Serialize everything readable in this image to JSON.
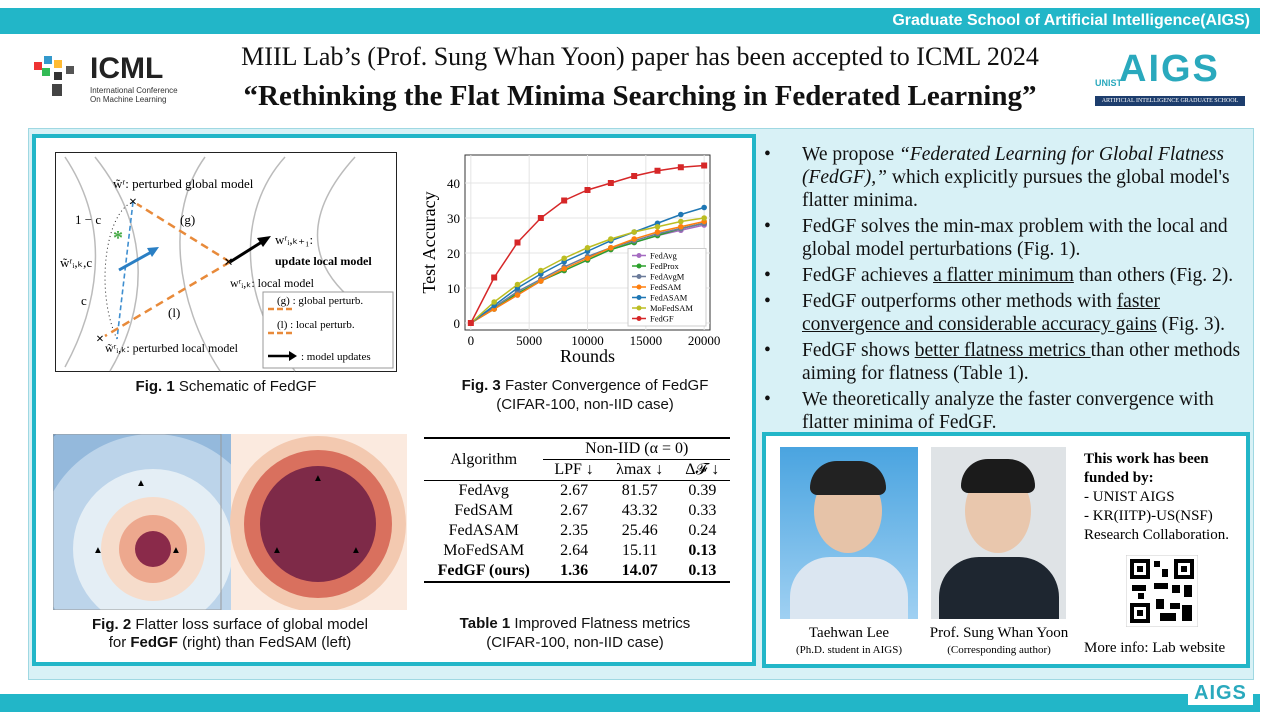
{
  "header": {
    "institution": "Graduate School of Artificial Intelligence(AIGS)",
    "icml_logo": {
      "name": "ICML",
      "sub": [
        "International Conference",
        "On Machine Learning"
      ]
    },
    "aigs_logo": {
      "name": "AIGS",
      "unist": "UNIST",
      "sub": "ARTIFICIAL INTELLIGENCE GRADUATE SCHOOL"
    },
    "title_line1": "MIIL Lab’s (Prof. Sung Whan Yoon) paper has been accepted to ICML 2024",
    "title_line2": "“Rethinking the Flat Minima Searching in Federated Learning”"
  },
  "fig1": {
    "labels": {
      "perturbed_global": "w̃ʳ: perturbed global model",
      "next": "wʳᵢ,ₖ₊₁:",
      "update": "update local model",
      "local": "wʳᵢ,ₖ: local model",
      "mid": "w̃ʳᵢ,ₖ,c",
      "perturbed_local": "w̃ʳᵢ,ₖ: perturbed local model",
      "one_minus_c": "1 − c",
      "c": "c",
      "g": "(g)",
      "l": "(l)"
    },
    "legend": [
      "(g) : global perturb.",
      "(l) : local perturb.",
      ": model updates"
    ],
    "caption_label": "Fig. 1",
    "caption": "Schematic of FedGF"
  },
  "fig2": {
    "caption_label": "Fig. 2",
    "caption_a": "Flatter loss surface of global model",
    "caption_b1": "for",
    "caption_b_bold": "FedGF",
    "caption_b2": "(right) than FedSAM (left)"
  },
  "chart_data": {
    "type": "line",
    "x_label": "Rounds",
    "y_label": "Test Accuracy",
    "x": [
      0,
      2000,
      4000,
      6000,
      8000,
      10000,
      12000,
      14000,
      16000,
      18000,
      20000
    ],
    "xlim": [
      -500,
      20500
    ],
    "ylim": [
      -2,
      48
    ],
    "xticks": [
      0,
      5000,
      10000,
      15000,
      20000
    ],
    "yticks": [
      0,
      10,
      20,
      30,
      40
    ],
    "grid": true,
    "legend": "lower right",
    "series": [
      {
        "name": "FedAvg",
        "color": "#a56cc1",
        "values": [
          0,
          4,
          8,
          12,
          15,
          18,
          21,
          23,
          25,
          26.5,
          28
        ]
      },
      {
        "name": "FedProx",
        "color": "#2ca02c",
        "values": [
          0,
          4,
          8.5,
          12,
          15,
          18,
          21,
          23,
          25,
          27,
          28.5
        ]
      },
      {
        "name": "FedAvgM",
        "color": "#6b7b9a",
        "values": [
          0,
          4.5,
          9,
          12.5,
          16,
          19,
          21.5,
          23.5,
          25.5,
          27,
          28.5
        ]
      },
      {
        "name": "FedSAM",
        "color": "#ff7f0e",
        "values": [
          0,
          4,
          8,
          12,
          15.5,
          18.5,
          21.5,
          24,
          26,
          27.5,
          29
        ]
      },
      {
        "name": "FedASAM",
        "color": "#1f77b4",
        "values": [
          0,
          5,
          10,
          14,
          17.5,
          20.5,
          23.5,
          26,
          28.5,
          31,
          33
        ]
      },
      {
        "name": "MoFedSAM",
        "color": "#bcbd22",
        "values": [
          0,
          6,
          11,
          15,
          18.5,
          21.5,
          24,
          26,
          27.5,
          29,
          30
        ]
      },
      {
        "name": "FedGF",
        "color": "#d62728",
        "values": [
          0,
          13,
          23,
          30,
          35,
          38,
          40,
          42,
          43.5,
          44.5,
          45
        ]
      }
    ],
    "caption_label": "Fig. 3",
    "caption_a": "Faster Convergence of FedGF",
    "caption_b": "(CIFAR-100, non-IID case)"
  },
  "table": {
    "group_header": "Non-IID (α = 0)",
    "columns": [
      "Algorithm",
      "LPF ↓",
      "λmax ↓",
      "Δ𝓕 ↓"
    ],
    "rows": [
      [
        "FedAvg",
        2.67,
        81.57,
        0.39
      ],
      [
        "FedSAM",
        2.67,
        43.32,
        0.33
      ],
      [
        "FedASAM",
        2.35,
        25.46,
        0.24
      ],
      [
        "MoFedSAM",
        2.64,
        15.11,
        0.13
      ],
      [
        "FedGF (ours)",
        1.36,
        14.07,
        0.13
      ]
    ],
    "caption_label": "Table 1",
    "caption_a": "Improved Flatness metrics",
    "caption_b": "(CIFAR-100, non-IID case)"
  },
  "bullets": [
    [
      "We propose ",
      "“Federated Learning for Global Flatness (FedGF),”",
      " which explicitly pursues the global model's flatter minima."
    ],
    [
      "FedGF solves the min-max problem with the local and global model perturbations (Fig. 1)."
    ],
    [
      "FedGF achieves ",
      "a flatter minimum",
      " than others (Fig. 2)."
    ],
    [
      "FedGF outperforms other methods with ",
      "faster convergence and considerable accuracy gains",
      " (Fig. 3)."
    ],
    [
      "FedGF shows ",
      "better flatness metrics ",
      "than other methods aiming for flatness (Table 1)."
    ],
    [
      "We theoretically analyze the faster convergence with flatter minima of FedGF."
    ]
  ],
  "people": [
    {
      "name": "Taehwan Lee",
      "role": "(Ph.D. student in AIGS)"
    },
    {
      "name": "Prof. Sung Whan Yoon",
      "role": "(Corresponding author)"
    }
  ],
  "funding": {
    "title": "This work has been funded by:",
    "items": [
      "- UNIST AIGS",
      "- KR(IITP)-US(NSF)",
      "Research Collaboration."
    ],
    "more": "More info: Lab website"
  }
}
